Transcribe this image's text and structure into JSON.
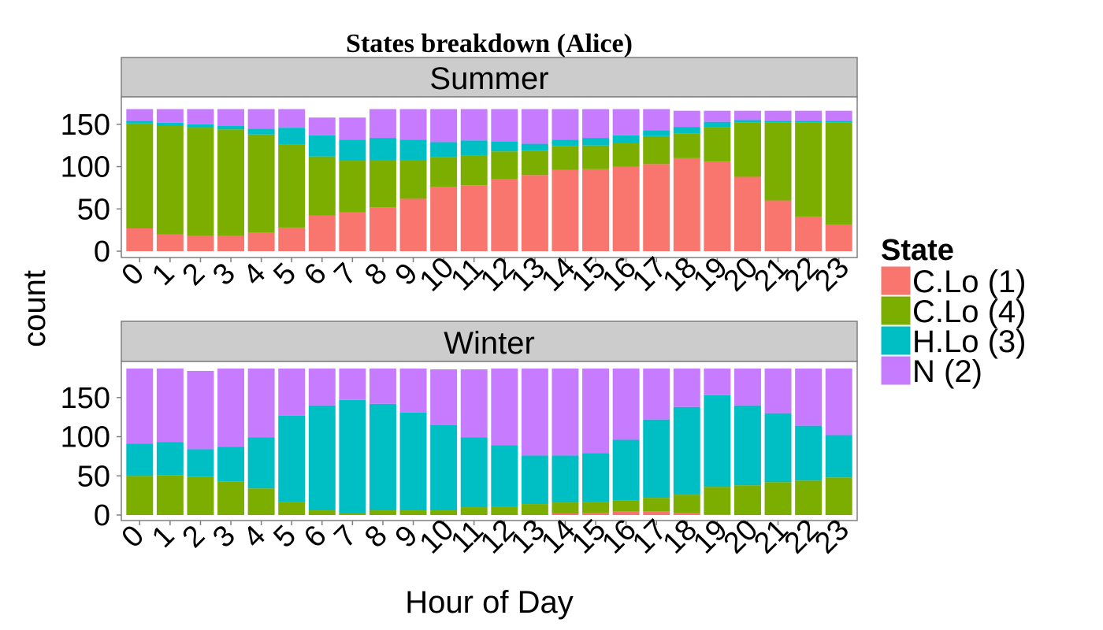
{
  "chart_data": {
    "type": "bar",
    "stacked": true,
    "title": "States breakdown (Alice)",
    "xlabel": "Hour of Day",
    "ylabel": "count",
    "categories": [
      "0",
      "1",
      "2",
      "3",
      "4",
      "5",
      "6",
      "7",
      "8",
      "9",
      "10",
      "11",
      "12",
      "13",
      "14",
      "15",
      "16",
      "17",
      "18",
      "19",
      "20",
      "21",
      "22",
      "23"
    ],
    "legend": {
      "title": "State",
      "position": "right",
      "entries": [
        {
          "key": "C1",
          "label": "C.Lo (1)",
          "color": "#F8766D"
        },
        {
          "key": "C4",
          "label": "C.Lo (4)",
          "color": "#7CAE00"
        },
        {
          "key": "H3",
          "label": "H.Lo (3)",
          "color": "#00BFC4"
        },
        {
          "key": "N2",
          "label": "N (2)",
          "color": "#C77CFF"
        }
      ]
    },
    "panels": [
      {
        "name": "Summer",
        "ylim": [
          0,
          175
        ],
        "yticks": [
          0,
          50,
          100,
          150
        ],
        "series": [
          {
            "key": "C1",
            "values": [
              27,
              20,
              18,
              18,
              22,
              28,
              42,
              46,
              52,
              62,
              76,
              78,
              85,
              90,
              96,
              97,
              100,
              103,
              110,
              106,
              88,
              60,
              41,
              31
            ]
          },
          {
            "key": "C4",
            "values": [
              124,
              128,
              128,
              126,
              116,
              98,
              70,
              61,
              56,
              46,
              35,
              35,
              33,
              29,
              28,
              28,
              28,
              33,
              29,
              41,
              64,
              92,
              111,
              121
            ]
          },
          {
            "key": "H3",
            "values": [
              3,
              4,
              4,
              4,
              7,
              20,
              25,
              25,
              26,
              24,
              18,
              18,
              12,
              8,
              8,
              9,
              9,
              7,
              8,
              6,
              3,
              2,
              2,
              2
            ]
          },
          {
            "key": "N2",
            "values": [
              14,
              16,
              18,
              20,
              23,
              22,
              21,
              26,
              34,
              36,
              39,
              37,
              38,
              41,
              36,
              34,
              31,
              25,
              19,
              13,
              11,
              12,
              12,
              12
            ]
          }
        ]
      },
      {
        "name": "Winter",
        "ylim": [
          0,
          188
        ],
        "yticks": [
          0,
          50,
          100,
          150
        ],
        "series": [
          {
            "key": "C1",
            "values": [
              0,
              0,
              0,
              0,
              0,
              0,
              0,
              0,
              0,
              0,
              0,
              0,
              0,
              0,
              2,
              3,
              5,
              5,
              3,
              1,
              0,
              0,
              0,
              0
            ]
          },
          {
            "key": "C4",
            "values": [
              50,
              51,
              49,
              43,
              34,
              17,
              6,
              3,
              6,
              6,
              6,
              10,
              11,
              14,
              14,
              14,
              14,
              17,
              23,
              35,
              38,
              42,
              44,
              48
            ]
          },
          {
            "key": "H3",
            "values": [
              41,
              42,
              35,
              44,
              65,
              110,
              134,
              144,
              136,
              125,
              109,
              89,
              78,
              62,
              60,
              62,
              77,
              100,
              112,
              117,
              102,
              88,
              70,
              54
            ]
          },
          {
            "key": "N2",
            "values": [
              96,
              94,
              100,
              100,
              88,
              60,
              47,
              40,
              45,
              56,
              71,
              87,
              98,
              111,
              111,
              108,
              91,
              65,
              49,
              34,
              47,
              57,
              73,
              85
            ]
          }
        ]
      }
    ]
  }
}
